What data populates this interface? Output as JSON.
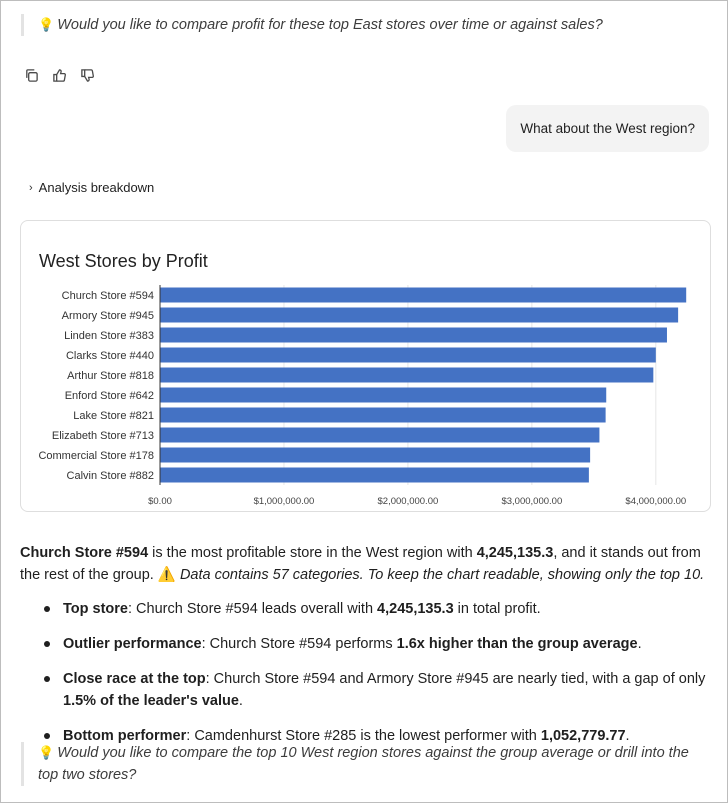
{
  "top_suggestion": "Would you like to compare profit for these top East stores over time or against sales?",
  "actions": {
    "copy_icon": "copy-icon",
    "thumbs_up_icon": "thumbs-up-icon",
    "thumbs_down_icon": "thumbs-down-icon"
  },
  "user_message": "What about the West region?",
  "breakdown_label": "Analysis breakdown",
  "chart_data": {
    "type": "bar",
    "orientation": "horizontal",
    "title": "West Stores by Profit",
    "categories": [
      "Church Store #594",
      "Armory Store #945",
      "Linden Store #383",
      "Clarks Store #440",
      "Arthur Store #818",
      "Enford Store #642",
      "Lake Store #821",
      "Elizabeth Store #713",
      "Commercial Store #178",
      "Calvin Store #882"
    ],
    "values": [
      4245135.3,
      4180000,
      4090000,
      4000000,
      3980000,
      3600000,
      3595000,
      3545000,
      3470000,
      3460000
    ],
    "xticks": [
      "$0.00",
      "$1,000,000.00",
      "$2,000,000.00",
      "$3,000,000.00",
      "$4,000,000.00"
    ],
    "xlim": [
      0,
      4300000
    ],
    "grid": true,
    "bar_color": "#4472c4"
  },
  "summary": {
    "lead_store": "Church Store #594",
    "text_1": " is the most profitable store in the West region with ",
    "lead_value": "4,245,135.3",
    "text_2": ", and it stands out from the rest of the group. ",
    "warning_icon": "⚠️",
    "note": "Data contains 57 categories. To keep the chart readable, showing only the top 10."
  },
  "bullets": [
    {
      "label": "Top store",
      "parts": [
        ": Church Store #594 leads overall with ",
        "4,245,135.3",
        " in total profit."
      ]
    },
    {
      "label": "Outlier performance",
      "parts": [
        ": Church Store #594 performs ",
        "1.6x higher than the group average",
        "."
      ]
    },
    {
      "label": "Close race at the top",
      "parts": [
        ": Church Store #594 and Armory Store #945 are nearly tied, with a gap of only ",
        "1.5% of the leader's value",
        "."
      ]
    },
    {
      "label": "Bottom performer",
      "parts": [
        ": Camdenhurst Store #285 is the lowest performer with ",
        "1,052,779.77",
        "."
      ]
    }
  ],
  "bottom_suggestion": "Would you like to compare the top 10 West region stores against the group average or drill into the top two stores?"
}
